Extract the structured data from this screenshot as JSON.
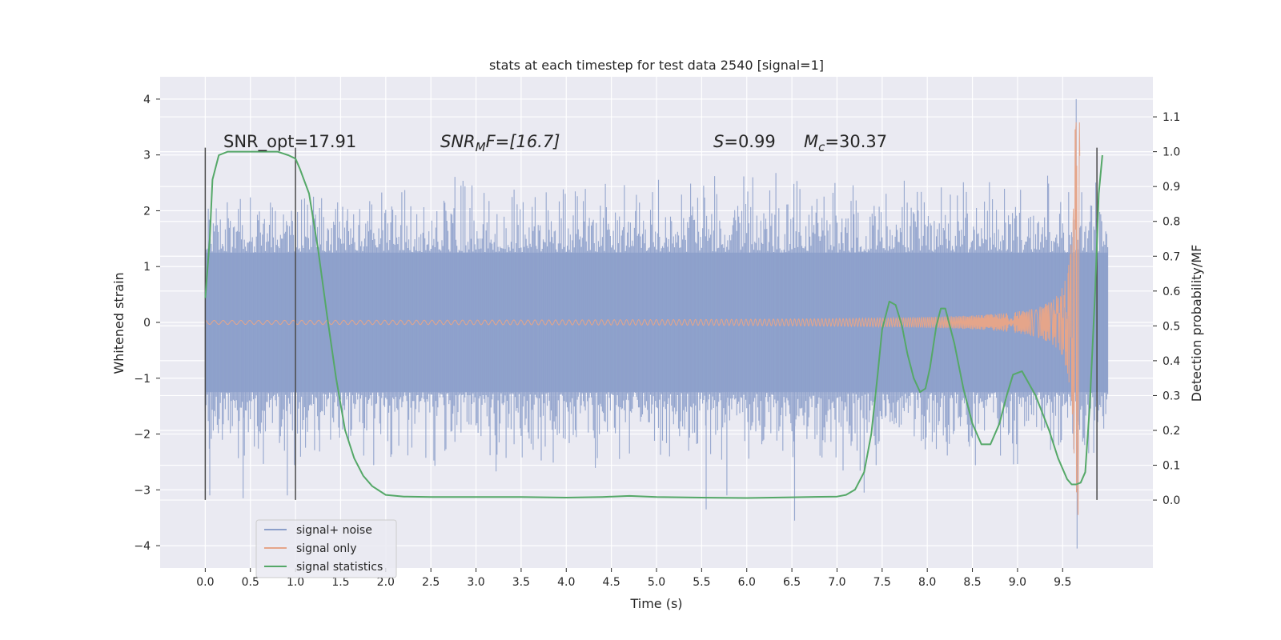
{
  "chart_data": {
    "type": "line",
    "title": "stats at each timestep for test data 2540 [signal=1]",
    "xlabel": "Time (s)",
    "ylabel_left": "Whitened strain",
    "ylabel_right": "Detection probability/MF",
    "xlim": [
      -0.5,
      10.5
    ],
    "ylim_left": [
      -4.4,
      4.4
    ],
    "ylim_right": [
      -0.195,
      1.215
    ],
    "x_ticks": [
      "0.0",
      "0.5",
      "1.0",
      "1.5",
      "2.0",
      "2.5",
      "3.0",
      "3.5",
      "4.0",
      "4.5",
      "5.0",
      "5.5",
      "6.0",
      "6.5",
      "7.0",
      "7.5",
      "8.0",
      "8.5",
      "9.0",
      "9.5"
    ],
    "y_ticks_left": [
      "4",
      "3",
      "2",
      "1",
      "0",
      "−1",
      "−2",
      "−3",
      "−4"
    ],
    "y_ticks_right": [
      "1.1",
      "1.0",
      "0.9",
      "0.8",
      "0.7",
      "0.6",
      "0.5",
      "0.4",
      "0.3",
      "0.2",
      "0.1",
      "0.0"
    ],
    "grid": true,
    "legend_position": "lower-left",
    "legend": [
      {
        "label": "signal+ noise",
        "color": "#8c9fca"
      },
      {
        "label": "signal only",
        "color": "#e5a58a"
      },
      {
        "label": "signal statistics",
        "color": "#55a868"
      }
    ],
    "annotations": {
      "snr_opt": "SNR_opt=17.91",
      "snr_mf_main": "SNR",
      "snr_mf_sub": "M",
      "snr_mf_rest": "F=[16.7]",
      "s_main": "S",
      "s_rest": "=0.99",
      "mc_main": "M",
      "mc_sub": "c",
      "mc_rest": "=30.37"
    },
    "vertical_markers_x": [
      0.0,
      1.0,
      9.88
    ],
    "series": [
      {
        "name": "signal+ noise",
        "type": "noise_band",
        "x_range": [
          0.0,
          10.0
        ],
        "core_envelope": [
          -1.25,
          1.25
        ],
        "peak_envelope": [
          -2.6,
          2.6
        ],
        "extreme_values": [
          {
            "x": 0.05,
            "y": -3.1
          },
          {
            "x": 0.42,
            "y": -3.15
          },
          {
            "x": 0.91,
            "y": -3.1
          },
          {
            "x": 5.55,
            "y": -3.35
          },
          {
            "x": 5.78,
            "y": -3.1
          },
          {
            "x": 6.53,
            "y": -3.55
          },
          {
            "x": 7.3,
            "y": -3.05
          },
          {
            "x": 9.65,
            "y": 4.0
          },
          {
            "x": 9.66,
            "y": -4.05
          }
        ]
      },
      {
        "name": "signal only",
        "type": "chirp",
        "x_range": [
          0.0,
          10.0
        ],
        "merger_x": 9.66,
        "amplitude_start": 0.02,
        "amplitude_peak": 3.6
      },
      {
        "name": "signal statistics",
        "axis": "right",
        "x": [
          0.0,
          0.05,
          0.08,
          0.15,
          0.25,
          0.35,
          0.5,
          0.65,
          0.8,
          0.92,
          1.0,
          1.05,
          1.15,
          1.25,
          1.35,
          1.45,
          1.55,
          1.65,
          1.75,
          1.85,
          2.0,
          2.2,
          2.5,
          3.0,
          3.5,
          4.0,
          4.4,
          4.7,
          5.0,
          5.5,
          6.0,
          6.5,
          7.0,
          7.1,
          7.2,
          7.3,
          7.38,
          7.45,
          7.5,
          7.58,
          7.65,
          7.72,
          7.78,
          7.85,
          7.92,
          7.98,
          8.03,
          8.1,
          8.15,
          8.2,
          8.3,
          8.4,
          8.5,
          8.6,
          8.7,
          8.8,
          8.88,
          8.95,
          9.05,
          9.2,
          9.35,
          9.45,
          9.55,
          9.6,
          9.65,
          9.7,
          9.75,
          9.8,
          9.86,
          9.9,
          9.94
        ],
        "values": [
          0.58,
          0.75,
          0.92,
          0.99,
          1.0,
          1.0,
          1.0,
          1.0,
          1.0,
          0.99,
          0.98,
          0.95,
          0.88,
          0.72,
          0.53,
          0.35,
          0.2,
          0.12,
          0.07,
          0.04,
          0.015,
          0.01,
          0.009,
          0.009,
          0.009,
          0.007,
          0.009,
          0.012,
          0.009,
          0.007,
          0.006,
          0.008,
          0.01,
          0.015,
          0.03,
          0.08,
          0.19,
          0.36,
          0.49,
          0.57,
          0.56,
          0.5,
          0.42,
          0.35,
          0.31,
          0.32,
          0.38,
          0.5,
          0.55,
          0.55,
          0.45,
          0.32,
          0.22,
          0.16,
          0.16,
          0.22,
          0.3,
          0.36,
          0.37,
          0.3,
          0.2,
          0.12,
          0.06,
          0.045,
          0.045,
          0.05,
          0.08,
          0.27,
          0.6,
          0.88,
          0.99
        ]
      }
    ]
  }
}
